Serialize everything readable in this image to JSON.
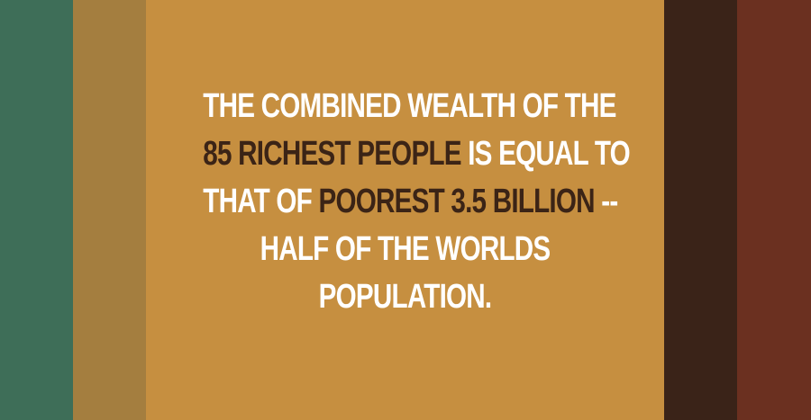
{
  "colors": {
    "stripe_1": "#3e6e58",
    "stripe_2": "#a47e3f",
    "stripe_main": "#c68f40",
    "stripe_4": "#3a2318",
    "stripe_5": "#6b3020",
    "text_light": "#ffffff",
    "text_dark": "#3b2416"
  },
  "quote": {
    "line1": "THE COMBINED WEALTH OF THE",
    "line2_highlight": "85 RICHEST PEOPLE",
    "line2_rest": " IS EQUAL TO",
    "line3_start": "THAT OF ",
    "line3_highlight": "POOREST 3.5 BILLION",
    "line3_rest": " --",
    "line4": "HALF OF THE WORLDS",
    "line5": "POPULATION."
  }
}
